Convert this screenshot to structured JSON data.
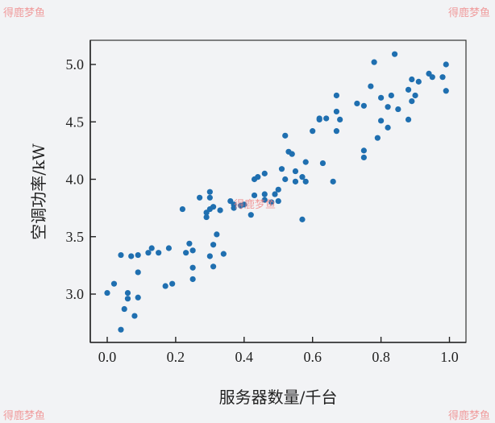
{
  "watermark": "得鹿梦鱼",
  "chart_data": {
    "type": "scatter",
    "title": "",
    "xlabel": "服务器数量/千台",
    "ylabel": "空调功率/kW",
    "xlim": [
      -0.05,
      1.05
    ],
    "ylim": [
      2.6,
      5.2
    ],
    "xticks": [
      "0.0",
      "0.2",
      "0.4",
      "0.6",
      "0.8",
      "1.0"
    ],
    "yticks": [
      "3.0",
      "3.5",
      "4.0",
      "4.5",
      "5.0"
    ],
    "grid": false,
    "color": "#1f6fb0",
    "points": [
      [
        0.0,
        3.01
      ],
      [
        0.02,
        3.09
      ],
      [
        0.04,
        3.34
      ],
      [
        0.04,
        2.69
      ],
      [
        0.05,
        2.87
      ],
      [
        0.06,
        3.01
      ],
      [
        0.06,
        2.96
      ],
      [
        0.07,
        3.33
      ],
      [
        0.08,
        2.81
      ],
      [
        0.09,
        2.97
      ],
      [
        0.09,
        3.34
      ],
      [
        0.09,
        3.19
      ],
      [
        0.12,
        3.36
      ],
      [
        0.13,
        3.4
      ],
      [
        0.15,
        3.36
      ],
      [
        0.17,
        3.07
      ],
      [
        0.18,
        3.4
      ],
      [
        0.19,
        3.09
      ],
      [
        0.22,
        3.74
      ],
      [
        0.23,
        3.36
      ],
      [
        0.24,
        3.44
      ],
      [
        0.25,
        3.23
      ],
      [
        0.25,
        3.13
      ],
      [
        0.25,
        3.38
      ],
      [
        0.27,
        3.84
      ],
      [
        0.29,
        3.71
      ],
      [
        0.29,
        3.67
      ],
      [
        0.3,
        3.33
      ],
      [
        0.3,
        3.89
      ],
      [
        0.3,
        3.84
      ],
      [
        0.3,
        3.74
      ],
      [
        0.31,
        3.76
      ],
      [
        0.31,
        3.43
      ],
      [
        0.31,
        3.24
      ],
      [
        0.32,
        3.52
      ],
      [
        0.33,
        3.73
      ],
      [
        0.34,
        3.35
      ],
      [
        0.36,
        3.81
      ],
      [
        0.37,
        3.75
      ],
      [
        0.37,
        3.78
      ],
      [
        0.39,
        3.77
      ],
      [
        0.4,
        3.78
      ],
      [
        0.42,
        3.69
      ],
      [
        0.43,
        4.0
      ],
      [
        0.43,
        3.86
      ],
      [
        0.44,
        4.02
      ],
      [
        0.46,
        3.82
      ],
      [
        0.46,
        3.87
      ],
      [
        0.48,
        3.8
      ],
      [
        0.49,
        3.87
      ],
      [
        0.5,
        3.91
      ],
      [
        0.5,
        3.81
      ],
      [
        0.52,
        4.0
      ],
      [
        0.46,
        4.05
      ],
      [
        0.51,
        4.09
      ],
      [
        0.52,
        4.38
      ],
      [
        0.53,
        4.24
      ],
      [
        0.54,
        4.22
      ],
      [
        0.55,
        4.07
      ],
      [
        0.55,
        3.98
      ],
      [
        0.57,
        4.02
      ],
      [
        0.57,
        3.65
      ],
      [
        0.58,
        4.15
      ],
      [
        0.58,
        3.98
      ],
      [
        0.6,
        4.42
      ],
      [
        0.62,
        4.52
      ],
      [
        0.62,
        4.53
      ],
      [
        0.63,
        4.14
      ],
      [
        0.64,
        4.53
      ],
      [
        0.66,
        3.98
      ],
      [
        0.67,
        4.73
      ],
      [
        0.67,
        4.59
      ],
      [
        0.67,
        4.42
      ],
      [
        0.68,
        4.52
      ],
      [
        0.73,
        4.66
      ],
      [
        0.75,
        4.64
      ],
      [
        0.75,
        4.19
      ],
      [
        0.75,
        4.25
      ],
      [
        0.77,
        4.81
      ],
      [
        0.78,
        5.02
      ],
      [
        0.79,
        4.36
      ],
      [
        0.8,
        4.51
      ],
      [
        0.8,
        4.71
      ],
      [
        0.82,
        4.45
      ],
      [
        0.82,
        4.63
      ],
      [
        0.83,
        4.73
      ],
      [
        0.84,
        5.09
      ],
      [
        0.85,
        4.61
      ],
      [
        0.88,
        4.78
      ],
      [
        0.88,
        4.52
      ],
      [
        0.89,
        4.68
      ],
      [
        0.89,
        4.87
      ],
      [
        0.9,
        4.73
      ],
      [
        0.91,
        4.85
      ],
      [
        0.94,
        4.92
      ],
      [
        0.95,
        4.89
      ],
      [
        0.98,
        4.89
      ],
      [
        0.99,
        5.0
      ],
      [
        0.99,
        4.77
      ]
    ]
  }
}
